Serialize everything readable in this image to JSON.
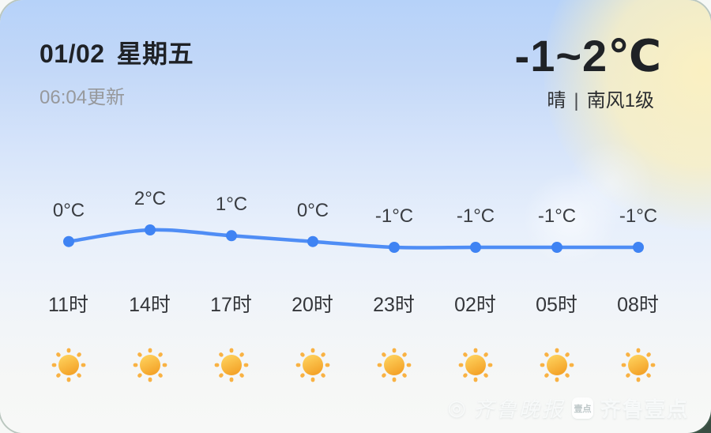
{
  "header": {
    "date": "01/02",
    "weekday": "星期五",
    "updated": "06:04更新",
    "temp_range": "-1~2℃",
    "condition": "晴",
    "separator": "|",
    "wind": "南风1级"
  },
  "chart_data": {
    "type": "line",
    "categories": [
      "11时",
      "14时",
      "17时",
      "20时",
      "23时",
      "02时",
      "05时",
      "08时"
    ],
    "values": [
      0,
      2,
      1,
      0,
      -1,
      -1,
      -1,
      -1
    ],
    "point_labels": [
      "0°C",
      "2°C",
      "1°C",
      "0°C",
      "-1°C",
      "-1°C",
      "-1°C",
      "-1°C"
    ],
    "icons": [
      "sunny",
      "sunny",
      "sunny",
      "sunny",
      "sunny",
      "sunny",
      "sunny",
      "sunny"
    ],
    "ylim": [
      -1,
      2
    ],
    "grid": false,
    "legend": "none",
    "line_color": "#4f8df5",
    "dot_color": "#3f83f3"
  },
  "colors": {
    "bg_top": "#b6d2f9",
    "bg_bottom": "#f7f8f7",
    "sun_glow": "#fcf1c1",
    "text_primary": "#1f2226",
    "text_secondary": "#97999c",
    "sun_core_top": "#ffd763",
    "sun_core_bottom": "#f4a42a",
    "sun_ray": "#f9b243"
  },
  "watermark": {
    "newspaper": "齐鲁晚报",
    "badge": "壹点",
    "app": "齐鲁壹点"
  }
}
